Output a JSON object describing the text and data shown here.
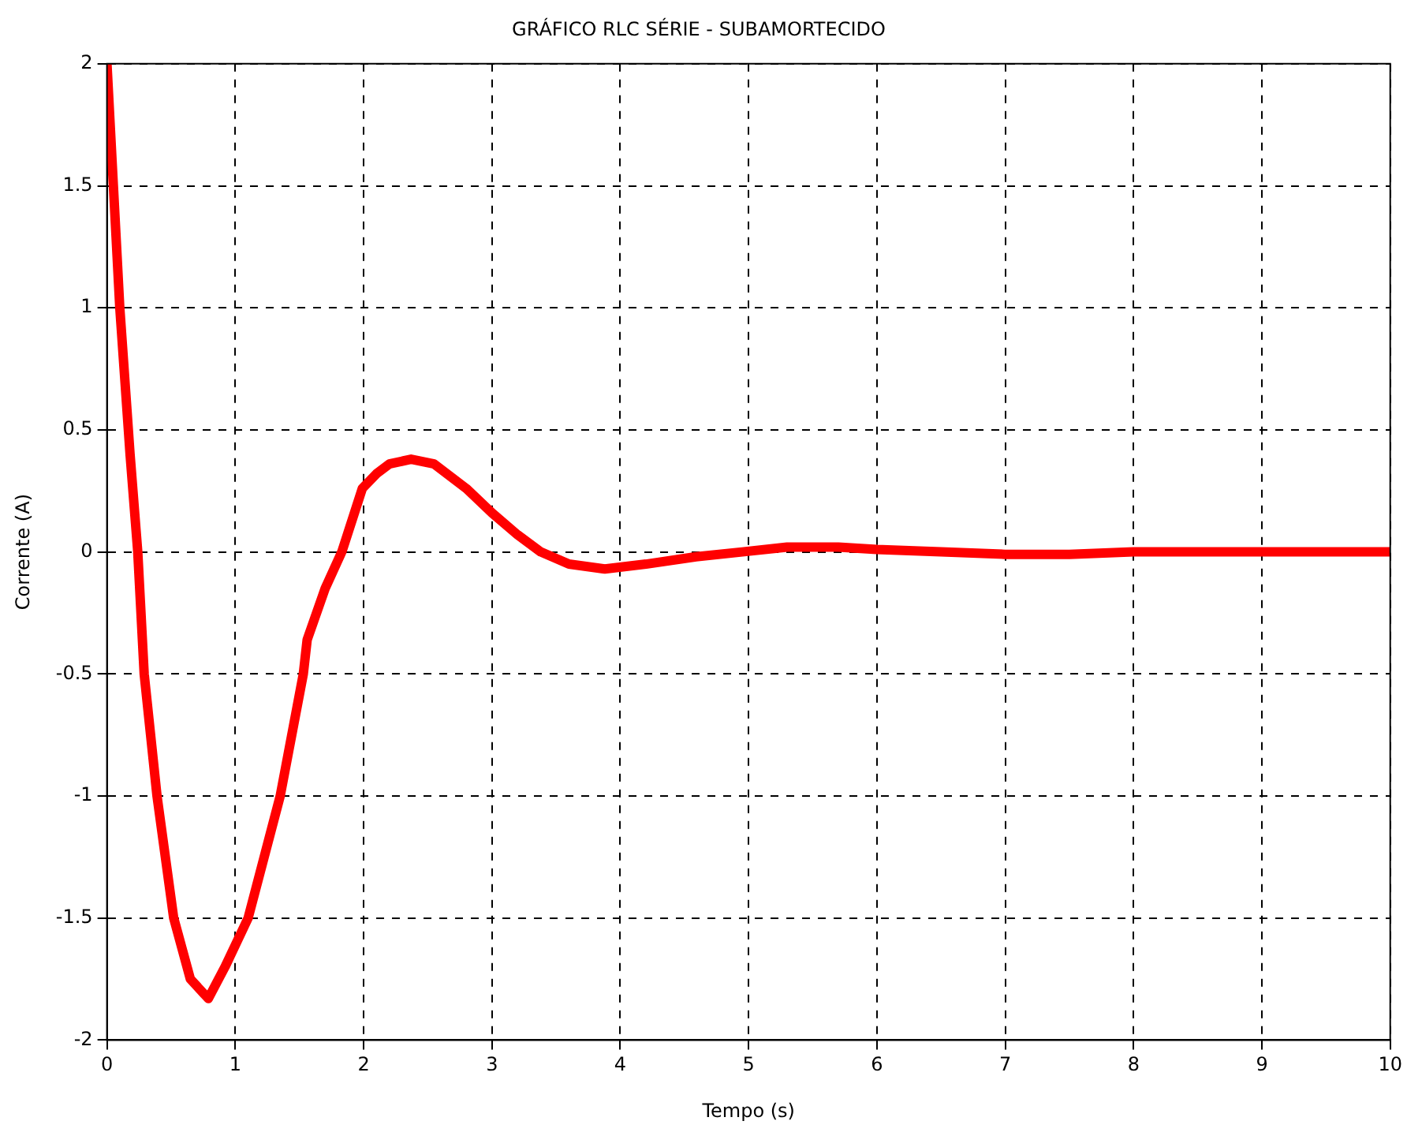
{
  "chart_data": {
    "type": "line",
    "title": "GRÁFICO RLC SÉRIE - SUBAMORTECIDO",
    "xlabel": "Tempo (s)",
    "ylabel": "Corrente (A)",
    "series": [
      {
        "color": "#ff0000",
        "x": [
          0,
          0.05,
          0.1,
          0.18,
          0.24,
          0.29,
          0.39,
          0.52,
          0.65,
          0.79,
          0.92,
          1.1,
          1.35,
          1.53,
          1.56,
          1.7,
          1.83,
          1.99,
          2.1,
          2.2,
          2.37,
          2.55,
          2.8,
          3.0,
          3.2,
          3.38,
          3.6,
          3.88,
          4.2,
          4.59,
          4.95,
          5.3,
          5.7,
          6.0,
          6.5,
          7.0,
          7.5,
          8.0,
          9.0,
          10.0
        ],
        "values": [
          2,
          1.5,
          1,
          0.4,
          0,
          -0.5,
          -1,
          -1.5,
          -1.75,
          -1.83,
          -1.7,
          -1.5,
          -1,
          -0.5,
          -0.36,
          -0.15,
          0,
          0.26,
          0.32,
          0.36,
          0.38,
          0.36,
          0.26,
          0.16,
          0.07,
          0,
          -0.05,
          -0.07,
          -0.05,
          -0.02,
          0,
          0.02,
          0.02,
          0.01,
          0,
          -0.01,
          -0.01,
          0,
          0,
          0
        ]
      }
    ],
    "xlim": [
      0,
      10
    ],
    "xticks": [
      0,
      1,
      2,
      3,
      4,
      5,
      6,
      7,
      8,
      9,
      10
    ],
    "ylim": [
      -2,
      2
    ],
    "yticks": [
      -2,
      -1.5,
      -1,
      -0.5,
      0,
      0.5,
      1,
      1.5,
      2
    ],
    "grid": true,
    "legend": false,
    "marker": "none",
    "line_style": "solid"
  }
}
